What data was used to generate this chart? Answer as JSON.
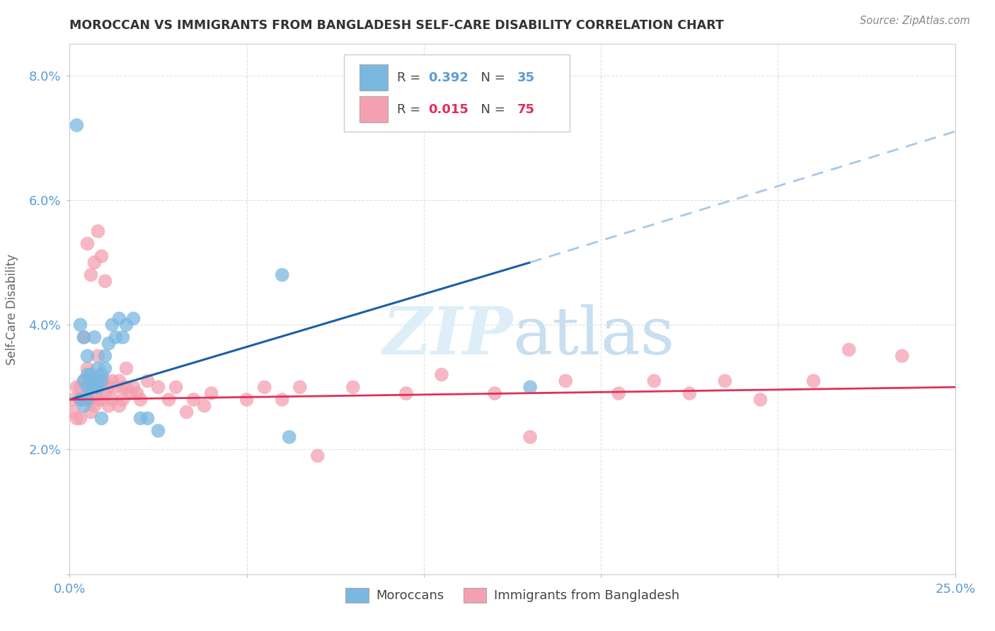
{
  "title": "MOROCCAN VS IMMIGRANTS FROM BANGLADESH SELF-CARE DISABILITY CORRELATION CHART",
  "source": "Source: ZipAtlas.com",
  "ylabel": "Self-Care Disability",
  "xlim": [
    0.0,
    0.25
  ],
  "ylim": [
    0.0,
    0.085
  ],
  "xticks": [
    0.0,
    0.05,
    0.1,
    0.15,
    0.2,
    0.25
  ],
  "xticklabels": [
    "0.0%",
    "",
    "",
    "",
    "",
    "25.0%"
  ],
  "yticks": [
    0.0,
    0.02,
    0.04,
    0.06,
    0.08
  ],
  "yticklabels": [
    "",
    "2.0%",
    "4.0%",
    "6.0%",
    "8.0%"
  ],
  "moroccan_color": "#7ab8e0",
  "bangladesh_color": "#f4a0b0",
  "moroccan_R": 0.392,
  "moroccan_N": 35,
  "bangladesh_R": 0.015,
  "bangladesh_N": 75,
  "moroccan_line_color": "#1a5fa8",
  "bangladesh_line_color": "#e0305a",
  "trendline_dashed_color": "#a8c8e8",
  "watermark_color": "#ddeef8",
  "background_color": "#ffffff",
  "grid_color": "#e0e0e0",
  "tick_color": "#5b9bd5",
  "ylabel_color": "#666666",
  "title_color": "#333333",
  "source_color": "#888888",
  "moroccan_x": [
    0.002,
    0.003,
    0.004,
    0.004,
    0.005,
    0.005,
    0.005,
    0.006,
    0.006,
    0.007,
    0.007,
    0.008,
    0.008,
    0.009,
    0.009,
    0.01,
    0.01,
    0.011,
    0.012,
    0.013,
    0.014,
    0.015,
    0.016,
    0.018,
    0.02,
    0.022,
    0.025,
    0.06,
    0.062,
    0.13,
    0.003,
    0.004,
    0.005,
    0.007,
    0.009
  ],
  "moroccan_y": [
    0.072,
    0.028,
    0.027,
    0.031,
    0.03,
    0.032,
    0.028,
    0.032,
    0.03,
    0.03,
    0.031,
    0.03,
    0.033,
    0.031,
    0.032,
    0.035,
    0.033,
    0.037,
    0.04,
    0.038,
    0.041,
    0.038,
    0.04,
    0.041,
    0.025,
    0.025,
    0.023,
    0.048,
    0.022,
    0.03,
    0.04,
    0.038,
    0.035,
    0.038,
    0.025
  ],
  "bangladesh_x": [
    0.001,
    0.001,
    0.002,
    0.002,
    0.003,
    0.003,
    0.003,
    0.004,
    0.004,
    0.004,
    0.005,
    0.005,
    0.005,
    0.006,
    0.006,
    0.006,
    0.006,
    0.007,
    0.007,
    0.007,
    0.008,
    0.008,
    0.008,
    0.009,
    0.009,
    0.01,
    0.01,
    0.011,
    0.011,
    0.012,
    0.012,
    0.013,
    0.014,
    0.014,
    0.015,
    0.015,
    0.016,
    0.016,
    0.017,
    0.018,
    0.019,
    0.02,
    0.022,
    0.025,
    0.028,
    0.03,
    0.033,
    0.035,
    0.038,
    0.04,
    0.05,
    0.055,
    0.06,
    0.065,
    0.07,
    0.08,
    0.095,
    0.105,
    0.12,
    0.13,
    0.14,
    0.155,
    0.165,
    0.175,
    0.185,
    0.195,
    0.21,
    0.22,
    0.235,
    0.005,
    0.006,
    0.007,
    0.008,
    0.009,
    0.01
  ],
  "bangladesh_y": [
    0.026,
    0.028,
    0.025,
    0.03,
    0.028,
    0.03,
    0.025,
    0.028,
    0.031,
    0.038,
    0.028,
    0.03,
    0.033,
    0.028,
    0.03,
    0.032,
    0.026,
    0.029,
    0.031,
    0.027,
    0.028,
    0.031,
    0.035,
    0.028,
    0.031,
    0.029,
    0.031,
    0.027,
    0.03,
    0.028,
    0.031,
    0.03,
    0.027,
    0.031,
    0.028,
    0.03,
    0.03,
    0.033,
    0.029,
    0.03,
    0.029,
    0.028,
    0.031,
    0.03,
    0.028,
    0.03,
    0.026,
    0.028,
    0.027,
    0.029,
    0.028,
    0.03,
    0.028,
    0.03,
    0.019,
    0.03,
    0.029,
    0.032,
    0.029,
    0.022,
    0.031,
    0.029,
    0.031,
    0.029,
    0.031,
    0.028,
    0.031,
    0.036,
    0.035,
    0.053,
    0.048,
    0.05,
    0.055,
    0.051,
    0.047
  ],
  "mor_trend_x0": 0.0,
  "mor_trend_y0": 0.028,
  "mor_trend_x1": 0.13,
  "mor_trend_y1": 0.05,
  "mor_trend_x2": 0.25,
  "mor_trend_y2": 0.071,
  "ban_trend_x0": 0.0,
  "ban_trend_y0": 0.028,
  "ban_trend_x1": 0.25,
  "ban_trend_y1": 0.03
}
